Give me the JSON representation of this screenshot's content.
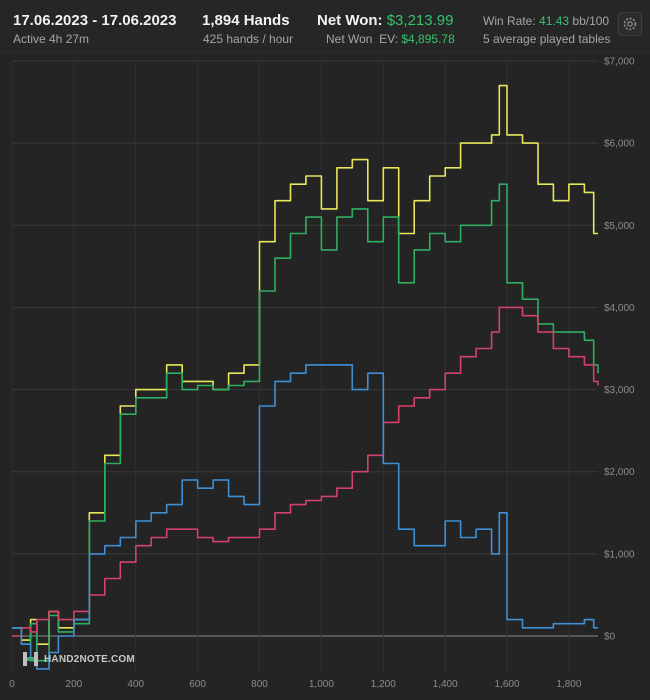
{
  "header": {
    "date_range": "17.06.2023 - 17.06.2023",
    "active": "Active 4h 27m",
    "hands": "1,894 Hands",
    "hands_per_hour": "425 hands / hour",
    "net_won_label": "Net Won:",
    "net_won_value": "$3,213.99",
    "net_won_ev_label": "Net Won  EV:",
    "net_won_ev_value": "$4,895.78",
    "win_rate_label": "Win Rate:",
    "win_rate_value": "41.43",
    "win_rate_unit": "bb/100",
    "tables": "5 average played tables",
    "settings_icon": "gear-icon"
  },
  "branding": {
    "logo_text": "HAND2NOTE.COM",
    "logo_icon": "h2n-logo-icon"
  },
  "chart_data": {
    "type": "line",
    "x_ticks": [
      "0",
      "200",
      "400",
      "600",
      "800",
      "1,000",
      "1,200",
      "1,400",
      "1,600",
      "1,800"
    ],
    "y_ticks": [
      "$0",
      "$1,000",
      "$2,000",
      "$3,000",
      "$4,000",
      "$5,000",
      "$6,000",
      "$7,000"
    ],
    "xlim": [
      0,
      1894
    ],
    "ylim": [
      -450,
      7000
    ],
    "grid": true,
    "colors": {
      "yellow": "#e8e65a",
      "green": "#2fae62",
      "red": "#d4416a",
      "blue": "#3d8fd6"
    },
    "series": [
      {
        "color": "yellow",
        "x": [
          0,
          30,
          60,
          80,
          120,
          150,
          200,
          250,
          300,
          350,
          400,
          450,
          500,
          550,
          600,
          650,
          700,
          750,
          800,
          850,
          900,
          950,
          1000,
          1050,
          1100,
          1150,
          1200,
          1250,
          1300,
          1350,
          1400,
          1450,
          1500,
          1550,
          1575,
          1600,
          1650,
          1700,
          1750,
          1800,
          1850,
          1880,
          1894
        ],
        "y": [
          100,
          -50,
          200,
          -100,
          300,
          100,
          200,
          1500,
          2200,
          2800,
          3000,
          3000,
          3300,
          3100,
          3100,
          3000,
          3200,
          3300,
          4800,
          5300,
          5500,
          5600,
          5200,
          5700,
          5800,
          5300,
          5700,
          4900,
          5300,
          5600,
          5700,
          6000,
          6000,
          6100,
          6700,
          6100,
          6000,
          5500,
          5300,
          5500,
          5400,
          4900,
          4900
        ]
      },
      {
        "color": "green",
        "x": [
          0,
          30,
          60,
          80,
          120,
          150,
          200,
          250,
          300,
          350,
          400,
          450,
          500,
          550,
          600,
          650,
          700,
          750,
          800,
          850,
          900,
          950,
          1000,
          1050,
          1100,
          1150,
          1200,
          1250,
          1300,
          1350,
          1400,
          1450,
          1500,
          1550,
          1575,
          1600,
          1650,
          1700,
          1750,
          1800,
          1850,
          1880,
          1894
        ],
        "y": [
          100,
          -100,
          150,
          -300,
          250,
          50,
          150,
          1400,
          2100,
          2700,
          2900,
          2900,
          3200,
          3000,
          3050,
          3000,
          3050,
          3100,
          4200,
          4600,
          4900,
          5100,
          4700,
          5100,
          5200,
          4800,
          5100,
          4300,
          4700,
          4900,
          4800,
          5000,
          5000,
          5300,
          5500,
          4300,
          4100,
          3800,
          3700,
          3700,
          3600,
          3300,
          3200
        ]
      },
      {
        "color": "red",
        "x": [
          0,
          30,
          60,
          80,
          120,
          150,
          200,
          250,
          300,
          350,
          400,
          450,
          500,
          550,
          600,
          650,
          700,
          750,
          800,
          850,
          900,
          950,
          1000,
          1050,
          1100,
          1150,
          1200,
          1250,
          1300,
          1350,
          1400,
          1450,
          1500,
          1550,
          1575,
          1600,
          1650,
          1700,
          1750,
          1800,
          1850,
          1880,
          1894
        ],
        "y": [
          0,
          100,
          50,
          200,
          300,
          200,
          300,
          500,
          700,
          900,
          1100,
          1200,
          1300,
          1300,
          1200,
          1150,
          1200,
          1200,
          1300,
          1500,
          1600,
          1650,
          1700,
          1800,
          2000,
          2200,
          2600,
          2800,
          2900,
          3000,
          3200,
          3400,
          3500,
          3700,
          4000,
          4000,
          3900,
          3700,
          3500,
          3400,
          3300,
          3100,
          3050
        ]
      },
      {
        "color": "blue",
        "x": [
          0,
          30,
          60,
          80,
          120,
          150,
          200,
          250,
          300,
          350,
          400,
          450,
          500,
          550,
          600,
          650,
          700,
          750,
          800,
          850,
          900,
          950,
          1000,
          1050,
          1100,
          1150,
          1200,
          1250,
          1300,
          1350,
          1400,
          1450,
          1500,
          1550,
          1575,
          1600,
          1650,
          1700,
          1750,
          1800,
          1850,
          1880,
          1894
        ],
        "y": [
          100,
          -100,
          -300,
          -400,
          -200,
          0,
          200,
          1000,
          1100,
          1200,
          1400,
          1500,
          1600,
          1900,
          1800,
          1900,
          1700,
          1600,
          2800,
          3100,
          3200,
          3300,
          3300,
          3300,
          3000,
          3200,
          2100,
          1300,
          1100,
          1100,
          1400,
          1200,
          1300,
          1000,
          1500,
          200,
          100,
          100,
          150,
          150,
          200,
          100,
          100
        ]
      }
    ]
  }
}
